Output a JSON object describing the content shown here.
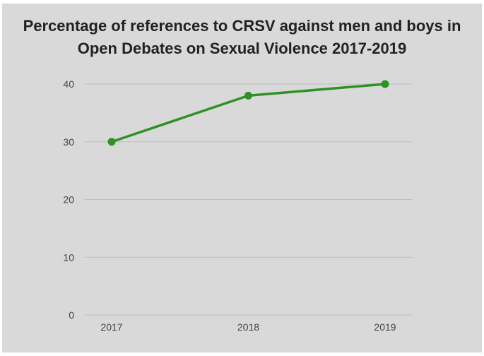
{
  "chart_data": {
    "type": "line",
    "title_lines": [
      "Percentage of references to CRSV against men and boys in",
      "Open Debates on Sexual Violence 2017-2019"
    ],
    "xlabel": "",
    "ylabel": "",
    "categories": [
      "2017",
      "2018",
      "2019"
    ],
    "series": [
      {
        "values": [
          30,
          38,
          40
        ]
      }
    ],
    "ylim": [
      0,
      40
    ],
    "yticks": [
      0,
      10,
      20,
      30,
      40
    ],
    "ytick_labels": [
      "0",
      "10",
      "20",
      "30",
      "40"
    ],
    "grid": true,
    "legend": "none",
    "colors": {
      "line": "#2e9126",
      "grid": "#bdbdbd",
      "background": "#d9d9d9"
    }
  }
}
